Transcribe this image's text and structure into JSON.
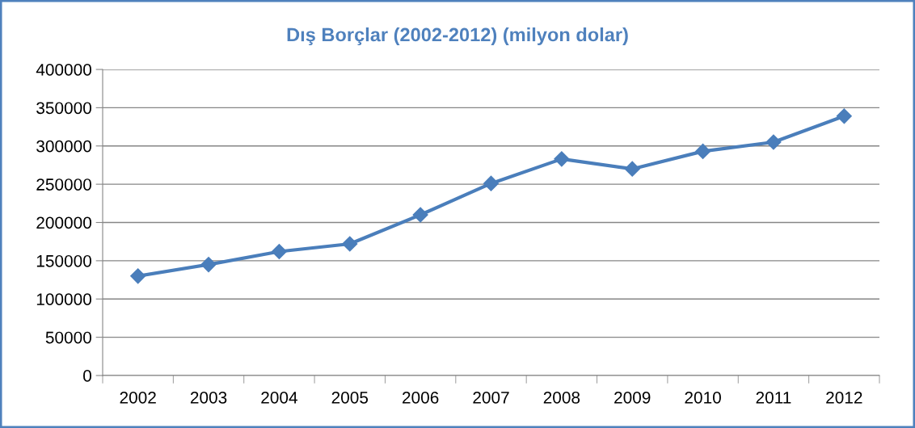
{
  "chart_data": {
    "type": "line",
    "title": "Dış Borçlar (2002-2012) (milyon dolar)",
    "categories": [
      "2002",
      "2003",
      "2004",
      "2005",
      "2006",
      "2007",
      "2008",
      "2009",
      "2010",
      "2011",
      "2012"
    ],
    "series": [
      {
        "color": "#4a7ebb",
        "values": [
          130000,
          145000,
          162000,
          172000,
          210000,
          251000,
          283000,
          270000,
          293000,
          305000,
          339000
        ]
      }
    ],
    "ylim": [
      0,
      400000
    ],
    "yticks": [
      0,
      50000,
      100000,
      150000,
      200000,
      250000,
      300000,
      350000,
      400000
    ],
    "grid": "y",
    "legend": false,
    "marker": "diamond",
    "line_style": "solid"
  }
}
